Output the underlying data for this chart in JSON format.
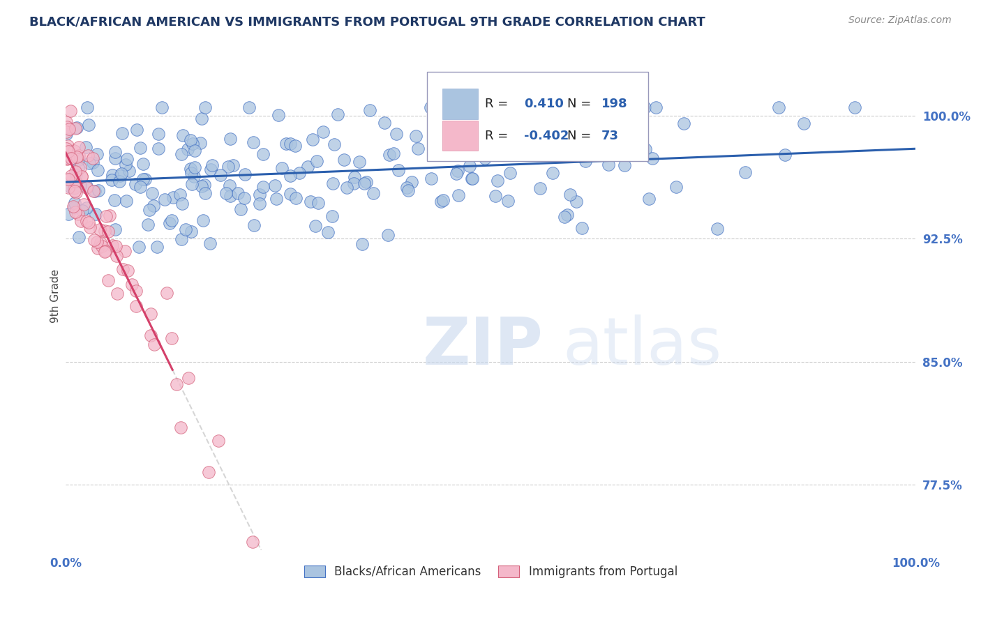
{
  "title": "BLACK/AFRICAN AMERICAN VS IMMIGRANTS FROM PORTUGAL 9TH GRADE CORRELATION CHART",
  "source": "Source: ZipAtlas.com",
  "ylabel": "9th Grade",
  "ytick_labels": [
    "77.5%",
    "85.0%",
    "92.5%",
    "100.0%"
  ],
  "ytick_values": [
    0.775,
    0.85,
    0.925,
    1.0
  ],
  "xmin": 0.0,
  "xmax": 1.0,
  "ymin": 0.735,
  "ymax": 1.045,
  "blue_color": "#aac4e0",
  "blue_edge_color": "#4472c4",
  "pink_color": "#f4b8ca",
  "pink_edge_color": "#d4607a",
  "blue_line_color": "#2b5fad",
  "pink_line_color": "#d4406a",
  "blue_label": "Blacks/African Americans",
  "pink_label": "Immigrants from Portugal",
  "watermark_zip": "ZIP",
  "watermark_atlas": "atlas",
  "title_color": "#1f3864",
  "axis_label_color": "#4472c4",
  "legend_border_color": "#aaaacc",
  "legend_text_color": "#2b5fad",
  "source_color": "#888888"
}
